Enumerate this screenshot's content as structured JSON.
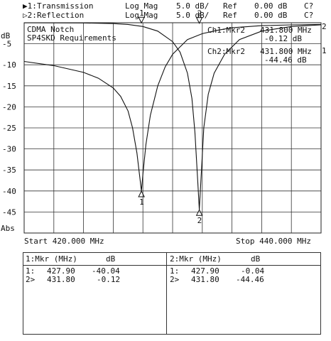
{
  "header": {
    "trace1": {
      "marker": "▶1:",
      "name": "Transmission",
      "format": "Log Mag",
      "scale": "5.0 dB/",
      "ref_label": "Ref",
      "ref_value": "0.00 dB",
      "cal": "C?"
    },
    "trace2": {
      "marker": "▷2:",
      "name": "Reflection",
      "format": "Log Mag",
      "scale": "5.0 dB/",
      "ref_label": "Ref",
      "ref_value": "0.00 dB",
      "cal": "C?"
    }
  },
  "chart_title": {
    "line1": "CDMA Notch",
    "line2": "SP4SKD Requirements"
  },
  "marker_readouts": {
    "ch1": {
      "label": "Ch1:Mkr2",
      "freq": "431.800 MHz",
      "value": "-0.12 dB"
    },
    "ch2": {
      "label": "Ch2:Mkr2",
      "freq": "431.800 MHz",
      "value": "-44.46 dB"
    }
  },
  "axis": {
    "y_unit": "dB",
    "y_bottom_label": "Abs",
    "start": "Start 420.000 MHz",
    "stop": "Stop 440.000 MHz",
    "right_ticks": [
      "2",
      "1"
    ]
  },
  "chart_data": {
    "type": "line",
    "xlabel": "",
    "ylabel": "dB",
    "xlim": [
      420,
      440
    ],
    "ylim": [
      -50,
      0
    ],
    "yticks": [
      -5,
      -10,
      -15,
      -20,
      -25,
      -30,
      -35,
      -40,
      -45
    ],
    "grid": true,
    "series": [
      {
        "name": "Transmission",
        "x": [
          420,
          422,
          424,
          425,
          426,
          426.5,
          427,
          427.3,
          427.6,
          427.8,
          427.9,
          428.0,
          428.2,
          428.5,
          429,
          429.5,
          430,
          431,
          432,
          433,
          434,
          436,
          438,
          440
        ],
        "y": [
          -9.2,
          -10.2,
          -11.8,
          -13.2,
          -15.5,
          -17.5,
          -21,
          -25,
          -31,
          -37,
          -40.04,
          -36,
          -29,
          -22,
          -15,
          -10.5,
          -7.5,
          -4,
          -2.6,
          -1.8,
          -1.2,
          -0.7,
          -0.5,
          -0.4
        ]
      },
      {
        "name": "Reflection",
        "x": [
          420,
          422,
          424,
          426,
          427,
          428,
          429,
          430,
          430.5,
          431,
          431.3,
          431.5,
          431.7,
          431.8,
          431.9,
          432.1,
          432.4,
          432.8,
          433.5,
          434.5,
          436,
          438,
          440
        ],
        "y": [
          -0.02,
          -0.03,
          -0.05,
          -0.2,
          -0.4,
          -0.9,
          -2,
          -4.5,
          -7,
          -12,
          -18,
          -26,
          -38,
          -44.46,
          -38,
          -25,
          -17,
          -12,
          -7.5,
          -4,
          -2,
          -0.9,
          -0.5
        ]
      }
    ],
    "markers": [
      {
        "trace": "Transmission",
        "id": "1",
        "x": 427.9,
        "y": -40.04
      },
      {
        "trace": "Transmission",
        "id": "2",
        "x": 431.8,
        "y": -0.12
      },
      {
        "trace": "Reflection",
        "id": "1",
        "x": 427.9,
        "y": -0.04
      },
      {
        "trace": "Reflection",
        "id": "2",
        "x": 431.8,
        "y": -44.46
      }
    ]
  },
  "table": {
    "left": {
      "header_label": "1:Mkr (MHz)",
      "header_unit": "dB",
      "rows": [
        {
          "id": "1:",
          "freq": "427.90",
          "val": "-40.04"
        },
        {
          "id": "2>",
          "freq": "431.80",
          "val": "-0.12"
        }
      ]
    },
    "right": {
      "header_label": "2:Mkr (MHz)",
      "header_unit": "dB",
      "rows": [
        {
          "id": "1:",
          "freq": "427.90",
          "val": "-0.04"
        },
        {
          "id": "2>",
          "freq": "431.80",
          "val": "-44.46"
        }
      ]
    }
  }
}
